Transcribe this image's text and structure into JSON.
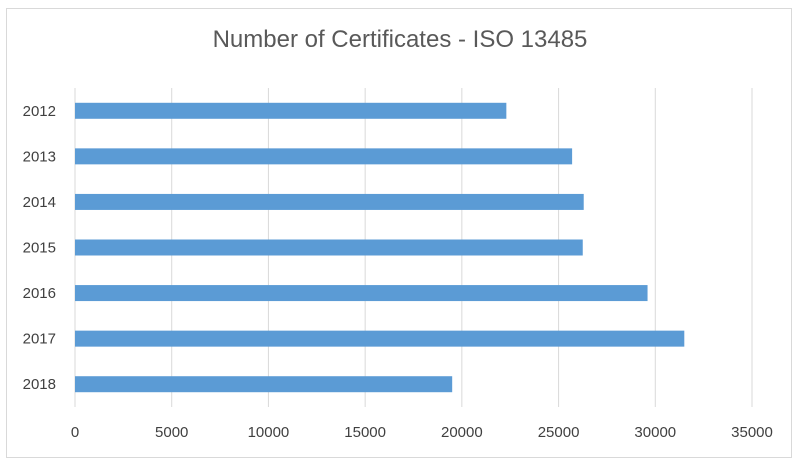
{
  "chart_data": {
    "type": "bar",
    "orientation": "horizontal",
    "title": "Number of Certificates - ISO 13485",
    "categories": [
      "2012",
      "2013",
      "2014",
      "2015",
      "2016",
      "2017",
      "2018"
    ],
    "values": [
      22300,
      25700,
      26300,
      26250,
      29600,
      31500,
      19500
    ],
    "xlim": [
      0,
      35000
    ],
    "xticks": [
      "0",
      "5000",
      "10000",
      "15000",
      "20000",
      "25000",
      "30000",
      "35000"
    ],
    "grid": true,
    "legend": "none",
    "bar_color": "#5b9bd5",
    "grid_color": "#d9d9d9"
  }
}
